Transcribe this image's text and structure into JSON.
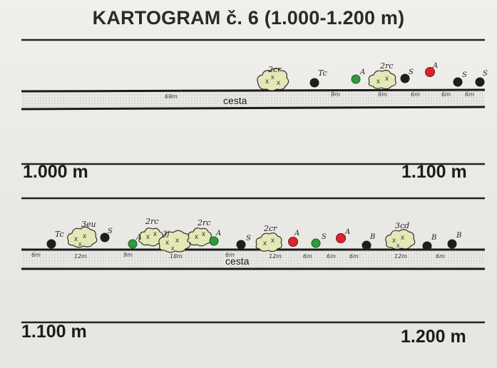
{
  "title": "KARTOGRAM č. 6 (1.000-1.200 m)",
  "colors": {
    "tree_black": "#1e1e1e",
    "tree_green": "#2e9b3c",
    "tree_red": "#d8262b",
    "bush_fill": "#e3e8b6",
    "road_dots": "#bdbdbd"
  },
  "sections": [
    {
      "road_label": "cesta",
      "start_label": "1.000 m",
      "end_label": "1.100 m",
      "trees": [
        {
          "color": "black",
          "label": "Tc"
        },
        {
          "color": "green",
          "label": "A"
        },
        {
          "color": "black",
          "label": "S"
        },
        {
          "color": "red",
          "label": "A"
        },
        {
          "color": "black",
          "label": "S"
        },
        {
          "color": "black",
          "label": "S"
        }
      ],
      "shrubs": [
        {
          "label": "2cr"
        },
        {
          "label": "2rc"
        }
      ],
      "distances": [
        "69m",
        "9m",
        "9m",
        "6m",
        "6m",
        "6m"
      ]
    },
    {
      "road_label": "cesta",
      "start_label": "1.100 m",
      "end_label": "1.200 m",
      "trees": [
        {
          "color": "black",
          "label": "Tc"
        },
        {
          "color": "black",
          "label": "S"
        },
        {
          "color": "green",
          "label": "A"
        },
        {
          "color": "green",
          "label": "A"
        },
        {
          "color": "black",
          "label": "S"
        },
        {
          "color": "red",
          "label": "A"
        },
        {
          "color": "green",
          "label": "S"
        },
        {
          "color": "red",
          "label": "A"
        },
        {
          "color": "black",
          "label": "B"
        },
        {
          "color": "black",
          "label": "B"
        },
        {
          "color": "black",
          "label": "B"
        }
      ],
      "shrubs": [
        {
          "label": "3eu"
        },
        {
          "label": "2rc"
        },
        {
          "label": "3j"
        },
        {
          "label": "2rc"
        },
        {
          "label": "2cr"
        },
        {
          "label": "3cd"
        }
      ],
      "distances": [
        "6m",
        "12m",
        "9m",
        "18m",
        "6m",
        "12m",
        "6m",
        "6m",
        "6m",
        "12m",
        "6m"
      ]
    }
  ]
}
